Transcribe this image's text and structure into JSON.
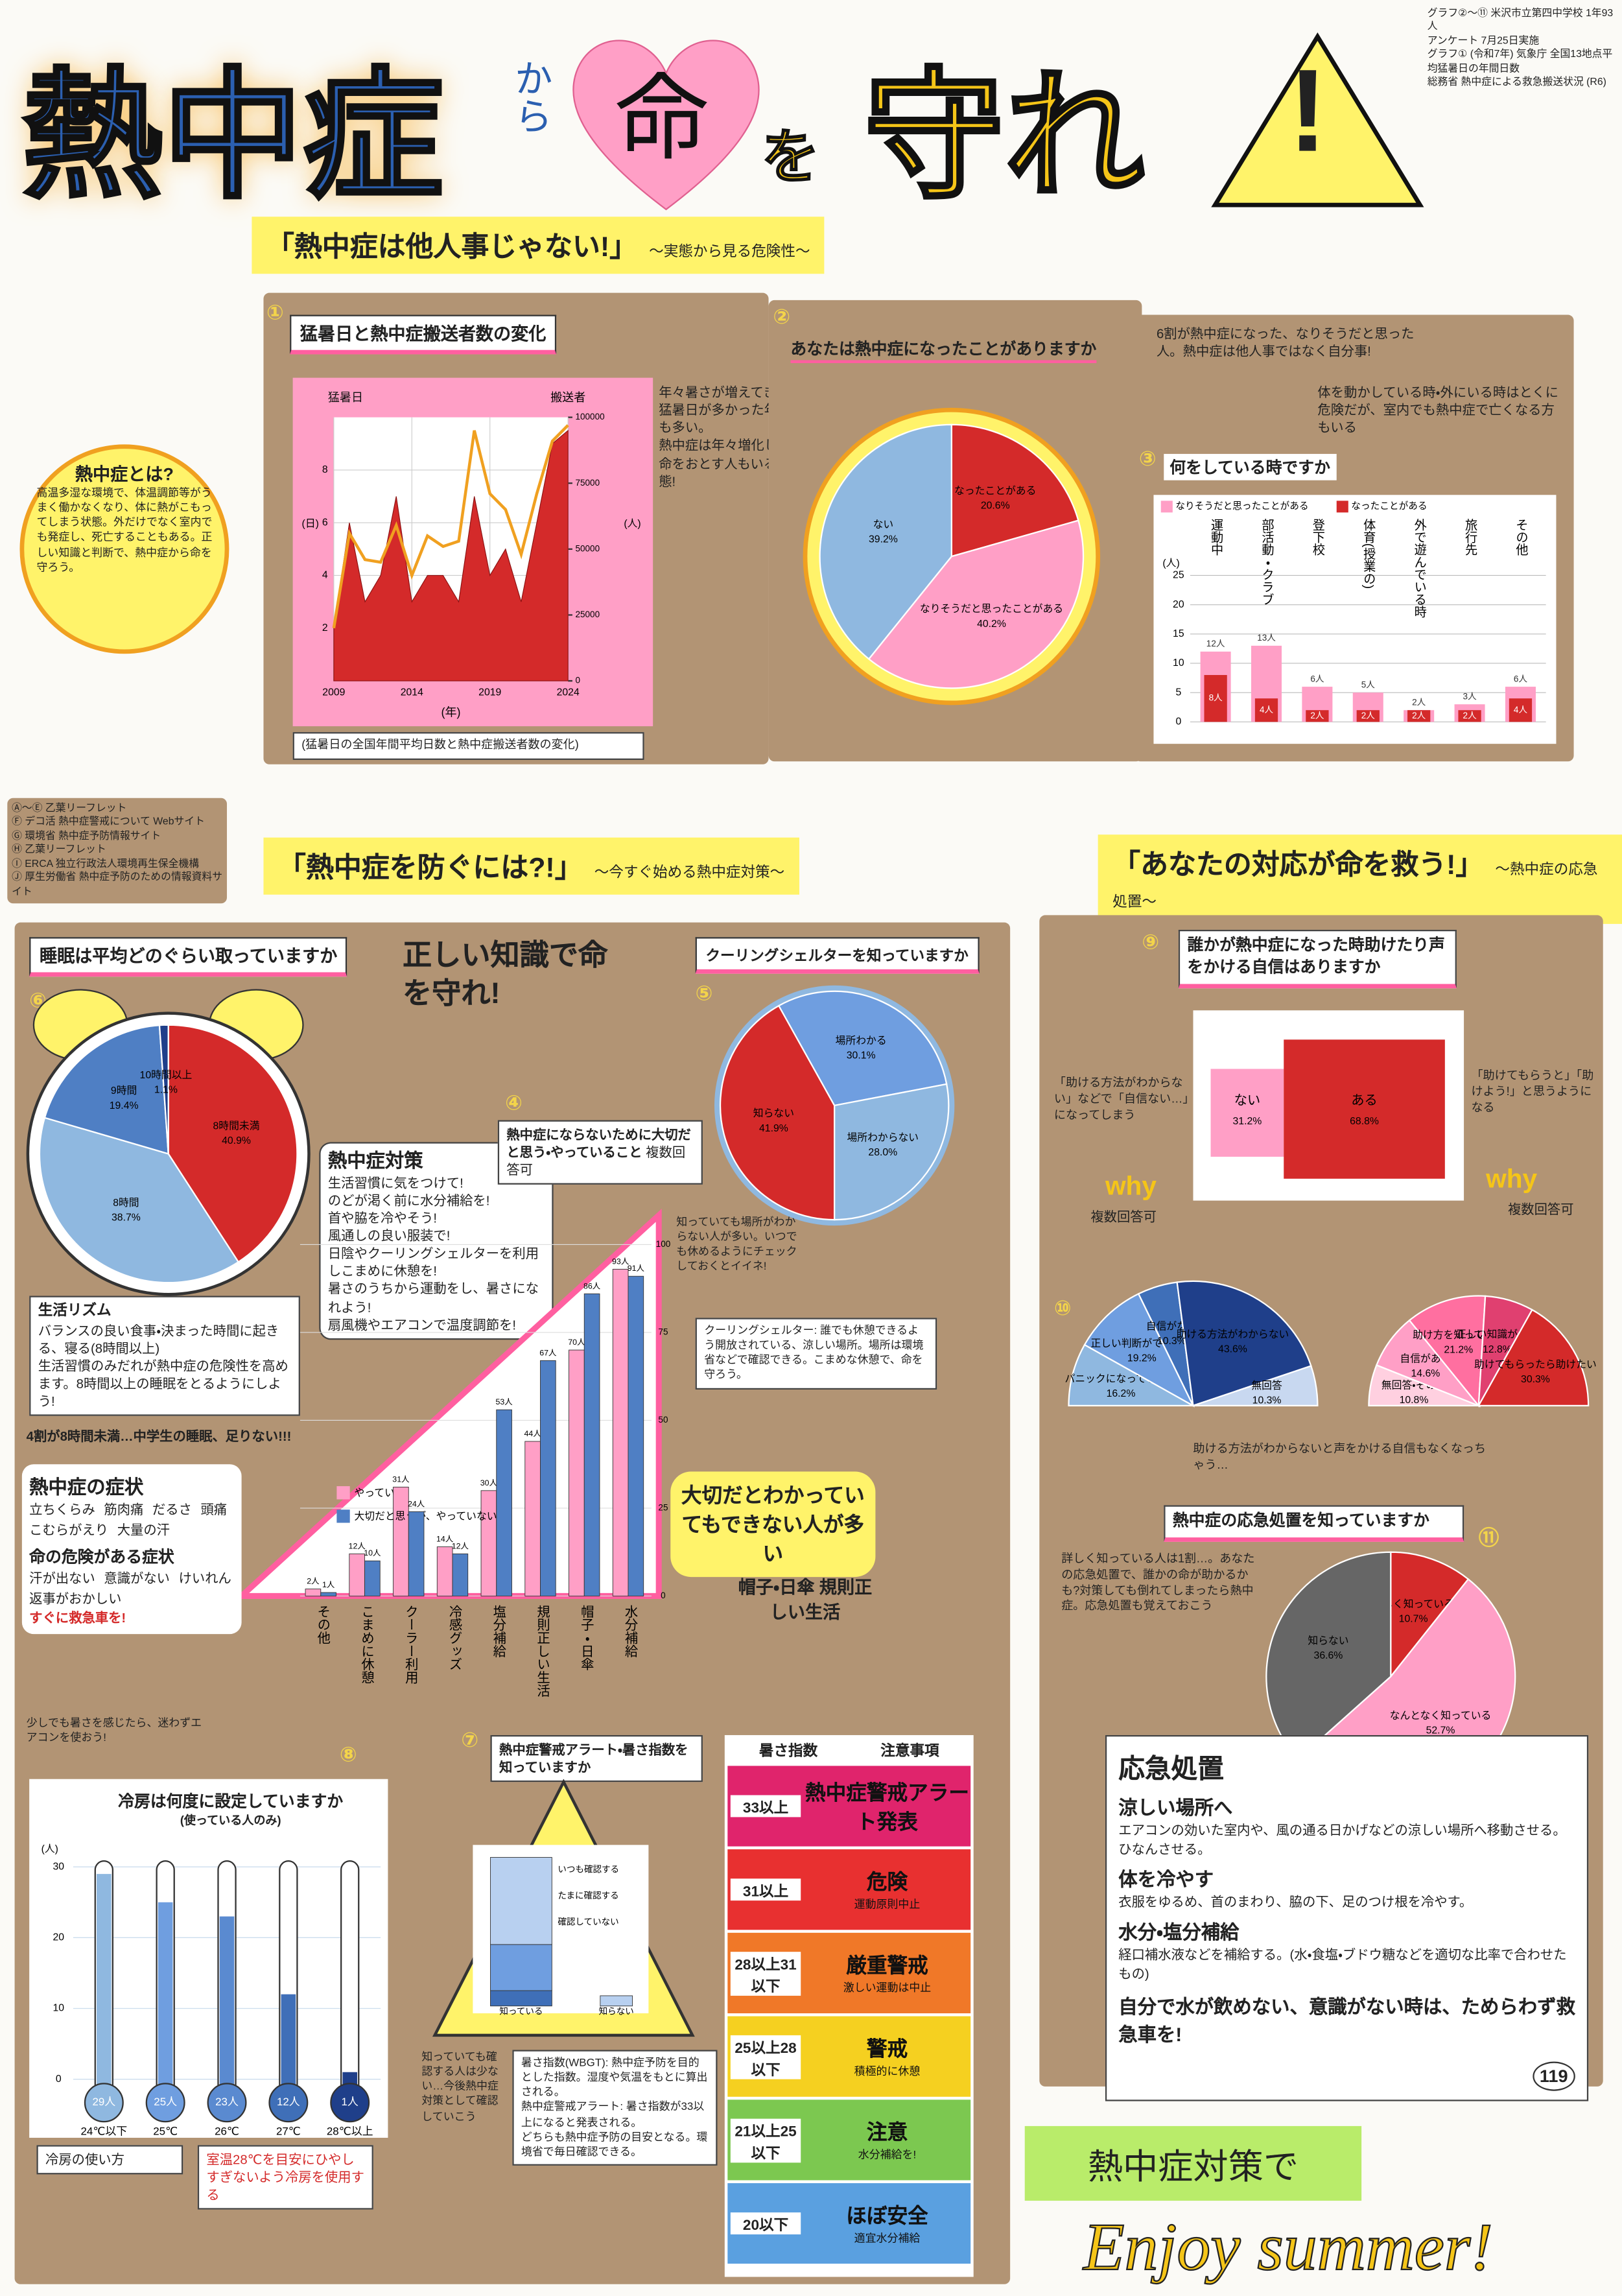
{
  "header": {
    "title_parts": [
      "熱中症",
      "から",
      "命",
      "を",
      "守れ",
      "!"
    ],
    "sources": [
      "グラフ②〜⑪ 米沢市立第四中学校 1年93人",
      "アンケート 7月25日実施",
      "グラフ① (令和7年) 気象庁 全国13地点平均猛暑日の年間日数",
      "総務省 熱中症による救急搬送状況 (R6)"
    ]
  },
  "sections": [
    {
      "title": "「熱中症は他人事じゃない!」",
      "subtitle": "〜実態から見る危険性〜"
    },
    {
      "title": "「熱中症を防ぐには?!」",
      "subtitle": "〜今すぐ始める熱中症対策〜"
    },
    {
      "title": "「あなたの対応が命を救う!」",
      "subtitle": "〜熱中症の応急処置〜"
    }
  ],
  "definition": {
    "title": "熱中症とは?",
    "text": "高温多湿な環境で、体温調節等がうまく働かなくなり、体に熱がこもってしまう状態。外だけでなく室内でも発症し、死亡することもある。正しい知識と判断で、熱中症から命を守ろう。"
  },
  "references": [
    "Ⓐ〜Ⓔ 乙葉リーフレット",
    "Ⓕ デコ活 熱中症警戒について Webサイト",
    "Ⓖ 環境省 熱中症予防情報サイト",
    "Ⓗ 乙葉リーフレット",
    "Ⓘ ERCA 独立行政法人環境再生保全機構",
    "Ⓙ 厚生労働省 熱中症予防のための情報資料サイト"
  ],
  "heat_days": {
    "type": "area-line",
    "number": "①",
    "title": "猛暑日と熱中症搬送者数の変化",
    "x": [
      2009,
      2010,
      2011,
      2012,
      2013,
      2014,
      2015,
      2016,
      2017,
      2018,
      2019,
      2020,
      2021,
      2022,
      2023,
      2024
    ],
    "series": [
      {
        "name": "猛暑日",
        "unit": "(日)",
        "color": "#d42a2a",
        "values": [
          2,
          6,
          3,
          4,
          7,
          3,
          4,
          4,
          3,
          7,
          4,
          5,
          3,
          6,
          9,
          9.5
        ]
      },
      {
        "name": "搬送者",
        "unit": "(人)",
        "color": "#f0a020",
        "axis": "y2",
        "values": [
          20000,
          56000,
          46000,
          45000,
          59000,
          40000,
          55000,
          51000,
          53000,
          95000,
          71000,
          65000,
          48000,
          71000,
          91000,
          97000
        ]
      }
    ],
    "xlabel": "(年)",
    "xticks": [
      2009,
      2014,
      2019,
      2024
    ],
    "ylim": [
      0,
      10
    ],
    "yticks": [
      2,
      4,
      6,
      8
    ],
    "y2lim": [
      0,
      100000
    ],
    "y2ticks": [
      0,
      25000,
      50000,
      75000,
      100000
    ],
    "caption": "(猛暑日の全国年間平均日数と熱中症搬送者数の変化)",
    "notes": [
      "年々暑さが増えてきていて、猛暑日が多かった年は搬送者も多い。",
      "熱中症は年々増化していて、命をおとす人もいる危険な状態!"
    ]
  },
  "experience": {
    "type": "pie",
    "number": "②",
    "title": "あなたは熱中症になったことがありますか",
    "categories": [
      "なったことがある",
      "なりそうだと思ったことがある",
      "ない"
    ],
    "values": [
      20.6,
      40.2,
      39.2
    ],
    "value_labels": [
      "20.6%",
      "40.2%",
      "39.2%"
    ],
    "colors": [
      "#d42a2a",
      "#ff9fc6",
      "#8fb8e0"
    ],
    "note": "6割が熱中症になった、なりそうだと思った人。熱中症は他人事ではなく自分事!"
  },
  "situation": {
    "type": "bar",
    "number": "③",
    "title": "何をしている時ですか",
    "categories": [
      "運動中",
      "部活動・クラブ",
      "登下校",
      "体育(授業の)",
      "外で遊んでいる時",
      "旅行先",
      "その他"
    ],
    "series": [
      {
        "name": "なりそうだと思ったことがある",
        "color": "#ff9fc6",
        "values": [
          12,
          13,
          6,
          5,
          2,
          3,
          6
        ],
        "value_labels": [
          "12人",
          "13人",
          "6人",
          "5人",
          "2人",
          "3人",
          "6人"
        ]
      },
      {
        "name": "なったことがある",
        "color": "#d42a2a",
        "values": [
          8,
          4,
          2,
          2,
          2,
          2,
          4
        ],
        "value_labels": [
          "8人",
          "4人",
          "2人",
          "2人",
          "2人",
          "2人",
          "4人"
        ]
      }
    ],
    "ylabel": "(人)",
    "ylim": [
      0,
      25
    ],
    "yticks": [
      0,
      5,
      10,
      15,
      20,
      25
    ],
    "grid": true,
    "note": "体を動かしている時・外にいる時はとくに危険だが、室内でも熱中症で亡くなる方もいる"
  },
  "sleep": {
    "type": "pie",
    "number": "⑥",
    "title": "睡眠は平均どのぐらい取っていますか",
    "categories": [
      "8時間未満",
      "8時間",
      "9時間",
      "10時間以上"
    ],
    "values": [
      40.9,
      38.7,
      19.4,
      1.1
    ],
    "value_labels": [
      "40.9%",
      "38.7%",
      "19.4%",
      "1.1%"
    ],
    "colors": [
      "#d42a2a",
      "#8fb8e0",
      "#4f7fc4",
      "#1f3f8a"
    ]
  },
  "rhythm": {
    "title": "生活リズム",
    "lines": [
      "バランスの良い食事・決まった時間に起きる、寝る(8時間以上)",
      "生活習慣のみだれが熱中症の危険性を高めます。8時間以上の睡眠をとるようにしよう!"
    ],
    "caption": "4割が8時間未満…中学生の睡眠、足りない!!!"
  },
  "slogan": "正しい知識で命を守れ!",
  "measures": {
    "title": "熱中症対策",
    "items": [
      "生活習慣に気をつけて!",
      "のどが渇く前に水分補給を!",
      "首や脇を冷やそう!",
      "風通しの良い服装で!",
      "日陰やクーリングシェルターを利用しこまめに休憩を!",
      "暑さのうちから運動をし、暑さになれよう!",
      "扇風機やエアコンで温度調節を!"
    ]
  },
  "prevention": {
    "type": "bar",
    "number": "④",
    "title": "熱中症にならないために大切だと思う・やっていること",
    "subtitle": "複数回答可",
    "categories": [
      "その他",
      "こまめに休憩",
      "クーラー利用",
      "冷感グッズ",
      "塩分補給",
      "規則正しい生活",
      "帽子・日傘",
      "水分補給"
    ],
    "series": [
      {
        "name": "やっている",
        "color": "#ff9fc6",
        "values": [
          2,
          12,
          31,
          14,
          30,
          44,
          70,
          93
        ],
        "value_labels": [
          "2人",
          "12人",
          "31人",
          "14人",
          "30人",
          "44人",
          "70人",
          "93人"
        ]
      },
      {
        "name": "大切だと思うが、やっていない",
        "color": "#4f7fc4",
        "values": [
          1,
          10,
          24,
          12,
          53,
          67,
          86,
          91
        ],
        "value_labels": [
          "1人",
          "10人",
          "24人",
          "12人",
          "53人",
          "67人",
          "86人",
          "91人"
        ]
      }
    ],
    "ylim": [
      0,
      100
    ],
    "yticks": [
      0,
      25,
      50,
      75,
      100
    ],
    "notes": [
      "大切だとわかっていてもできない人が多い",
      "帽子・日傘 規則正しい生活"
    ]
  },
  "shelter": {
    "type": "pie",
    "number": "⑤",
    "title": "クーリングシェルターを知っていますか",
    "categories": [
      "知らない",
      "場所わかる",
      "場所わからない"
    ],
    "values": [
      41.9,
      30.1,
      28.0
    ],
    "value_labels": [
      "41.9%",
      "30.1%",
      "28.0%"
    ],
    "colors": [
      "#d42a2a",
      "#6f9ee0",
      "#8fb8e0"
    ],
    "note": "知っていても場所がわからない人が多い。いつでも休めるようにチェックしておくとイイネ!",
    "definition": "クーリングシェルター: 誰でも休憩できるよう開放されている、涼しい場所。場所は環境省などで確認できる。こまめな休憩で、命を守ろう。"
  },
  "symptoms": {
    "title": "熱中症の症状",
    "items": [
      "立ちくらみ",
      "筋肉痛",
      "だるさ",
      "頭痛",
      "こむらがえり",
      "大量の汗"
    ],
    "danger_title": "命の危険がある症状",
    "danger_items": [
      "汗が出ない",
      "意識がない",
      "けいれん",
      "返事がおかしい"
    ],
    "action": "すぐに救急車を!"
  },
  "cooling": {
    "type": "thermometer",
    "number": "⑧",
    "title": "冷房は何度に設定していますか",
    "subtitle": "(使っている人のみ)",
    "categories": [
      "24℃以下",
      "25℃",
      "26℃",
      "27℃",
      "28℃以上"
    ],
    "values": [
      29,
      25,
      23,
      12,
      1
    ],
    "value_labels": [
      "29人",
      "25人",
      "23人",
      "12人",
      "1人"
    ],
    "colors": [
      "#8fb8e0",
      "#6f9ee0",
      "#5a8ad0",
      "#3f6fb8",
      "#1f3f8a"
    ],
    "ylabel": "(人)",
    "ylim": [
      0,
      30
    ],
    "yticks": [
      0,
      10,
      20,
      30
    ],
    "note": "少しでも暑さを感じたら、迷わずエアコンを使おう!",
    "tips": [
      "冷房の使い方",
      "室温28℃を目安にひやしすぎないよう冷房を使用する"
    ]
  },
  "alert": {
    "type": "stacked-bar",
    "number": "⑦",
    "title": "熱中症警戒アラート・暑さ指数を知っていますか",
    "categories": [
      "知っている",
      "知らない"
    ],
    "series": [
      {
        "name": "いつも確認する",
        "color": "#3f6fb8",
        "values": [
          9,
          0
        ]
      },
      {
        "name": "たまに確認する",
        "color": "#6f9ee0",
        "values": [
          27,
          0
        ]
      },
      {
        "name": "確認していない",
        "color": "#b8d0f0",
        "values": [
          51,
          6
        ]
      }
    ],
    "ylim": [
      0,
      90
    ],
    "note": "知っていても確認する人は少ない…今後熱中症対策として確認していこう",
    "explanation": [
      "暑さ指数(WBGT): 熱中症予防を目的とした指数。湿度や気温をもとに算出される。",
      "熱中症警戒アラート: 暑さ指数が33以上になると発表される。",
      "どちらも熱中症予防の目安となる。環境省で毎日確認できる。"
    ]
  },
  "wbgt_table": {
    "headers": [
      "暑さ指数",
      "注意事項"
    ],
    "rows": [
      [
        "33以上",
        "熱中症警戒アラート発表"
      ],
      [
        "31以上",
        "危険",
        "運動原則中止"
      ],
      [
        "28以上31以下",
        "厳重警戒",
        "激しい運動は中止"
      ],
      [
        "25以上28以下",
        "警戒",
        "積極的に休憩"
      ],
      [
        "21以上25以下",
        "注意",
        "水分補給を!"
      ],
      [
        "20以下",
        "ほぼ安全",
        "適宜水分補給"
      ]
    ],
    "row_colors": [
      "#e0246c",
      "#e83030",
      "#f07828",
      "#f5d020",
      "#7cc850",
      "#5aa0e0"
    ]
  },
  "confidence": {
    "type": "blocks",
    "number": "⑨",
    "title": "誰かが熱中症になった時助けたり声をかける自信はありますか",
    "categories": [
      "ない",
      "ある"
    ],
    "values": [
      31.2,
      68.8
    ],
    "value_labels": [
      "31.2%",
      "68.8%"
    ],
    "colors": [
      "#ff9fc6",
      "#d42a2a"
    ],
    "notes": [
      "「助ける方法がわからない」などで「自信ない…」になってしまう",
      "「助けてもらうと」「助けよう!」と思うようになる",
      "助ける方法がわからないと声をかける自信もなくなっちゃう…"
    ],
    "why": "why",
    "why_sub": "複数回答可"
  },
  "reasons_no": {
    "type": "half-pie",
    "number": "⑩",
    "categories": [
      "パニックになってしまう",
      "正しい判断ができない",
      "自信がない",
      "助ける方法がわからない",
      "無回答"
    ],
    "values": [
      16.2,
      19.2,
      10.3,
      43.6,
      10.3
    ],
    "value_labels": [
      "16.2%",
      "19.2%",
      "10.3%",
      "43.6%",
      "10.3%"
    ],
    "colors": [
      "#8fb8e0",
      "#6f9ee0",
      "#3f6fb8",
      "#1f3f8a",
      "#c8d8f0"
    ]
  },
  "reasons_yes": {
    "type": "half-pie",
    "categories": [
      "無回答・その他",
      "自信がある",
      "助け方を知っている",
      "正しい知識がある",
      "助けてもらったら助けたい"
    ],
    "values": [
      10.8,
      14.6,
      21.2,
      12.8,
      30.3
    ],
    "value_labels": [
      "10.8%",
      "14.6%",
      "21.2%",
      "12.8%",
      "30.3%"
    ],
    "colors": [
      "#ffd0e0",
      "#ff9fc6",
      "#ff6fa0",
      "#e04070",
      "#d42a2a"
    ]
  },
  "first_aid_know": {
    "type": "pie",
    "number": "⑪",
    "title": "熱中症の応急処置を知っていますか",
    "categories": [
      "詳しく知っている",
      "なんとなく知っている",
      "知らない"
    ],
    "values": [
      10.7,
      52.7,
      36.6
    ],
    "value_labels": [
      "10.7%",
      "52.7%",
      "36.6%"
    ],
    "colors": [
      "#d42a2a",
      "#ff9fc6",
      "#666666"
    ],
    "note": "詳しく知っている人は1割…。あなたの応急処置で、誰かの命が助かるかも?対策しても倒れてしまったら熱中症。応急処置も覚えておこう"
  },
  "first_aid": {
    "title": "応急処置",
    "steps": [
      {
        "heading": "涼しい場所へ",
        "text": "エアコンの効いた室内や、風の通る日かげなどの涼しい場所へ移動させる。ひなんさせる。"
      },
      {
        "heading": "体を冷やす",
        "text": "衣服をゆるめ、首のまわり、脇の下、足のつけ根を冷やす。"
      },
      {
        "heading": "水分・塩分補給",
        "text": "経口補水液などを補給する。(水・食塩・ブドウ糖などを適切な比率で合わせたもの)"
      }
    ],
    "warning": "自分で水が飲めない、意識がない時は、ためらわず救急車を!",
    "phone": "119"
  },
  "footer": {
    "slogan": "熱中症対策で",
    "enjoy": "Enjoy summer!"
  }
}
